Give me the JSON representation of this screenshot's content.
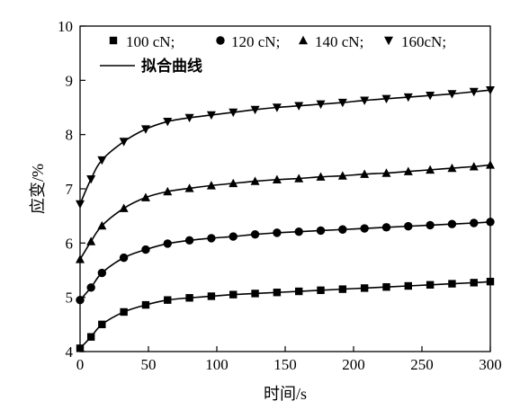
{
  "chart_data": {
    "type": "line",
    "xlabel": "时间/s",
    "ylabel": "应变/%",
    "xlim": [
      0,
      300
    ],
    "ylim": [
      4,
      10
    ],
    "x_ticks": [
      "0",
      "50",
      "100",
      "150",
      "200",
      "250",
      "300"
    ],
    "y_ticks": [
      "4",
      "5",
      "6",
      "7",
      "8",
      "9",
      "10"
    ],
    "grid": false,
    "legend_position": "top-left",
    "fit_label": "拟合曲线",
    "x": [
      0,
      8,
      16,
      32,
      48,
      64,
      80,
      96,
      112,
      128,
      144,
      160,
      176,
      192,
      208,
      224,
      240,
      256,
      272,
      288,
      300
    ],
    "series": [
      {
        "name": "100 cN;",
        "marker": "square",
        "values": [
          4.06,
          4.27,
          4.5,
          4.73,
          4.86,
          4.95,
          4.99,
          5.02,
          5.05,
          5.07,
          5.09,
          5.11,
          5.13,
          5.15,
          5.17,
          5.19,
          5.21,
          5.23,
          5.25,
          5.27,
          5.29
        ]
      },
      {
        "name": "120 cN;",
        "marker": "circle",
        "values": [
          4.95,
          5.18,
          5.45,
          5.73,
          5.88,
          5.99,
          6.05,
          6.09,
          6.12,
          6.16,
          6.19,
          6.21,
          6.23,
          6.25,
          6.27,
          6.29,
          6.31,
          6.33,
          6.35,
          6.37,
          6.39
        ]
      },
      {
        "name": "140 cN;",
        "marker": "triangle-up",
        "values": [
          5.7,
          6.03,
          6.32,
          6.64,
          6.84,
          6.95,
          7.01,
          7.06,
          7.1,
          7.14,
          7.17,
          7.19,
          7.22,
          7.24,
          7.27,
          7.29,
          7.32,
          7.35,
          7.38,
          7.41,
          7.44
        ]
      },
      {
        "name": "160cN;",
        "marker": "triangle-down",
        "values": [
          6.72,
          7.18,
          7.53,
          7.87,
          8.1,
          8.24,
          8.31,
          8.36,
          8.41,
          8.46,
          8.5,
          8.53,
          8.56,
          8.59,
          8.63,
          8.66,
          8.69,
          8.72,
          8.75,
          8.79,
          8.82
        ]
      }
    ]
  }
}
